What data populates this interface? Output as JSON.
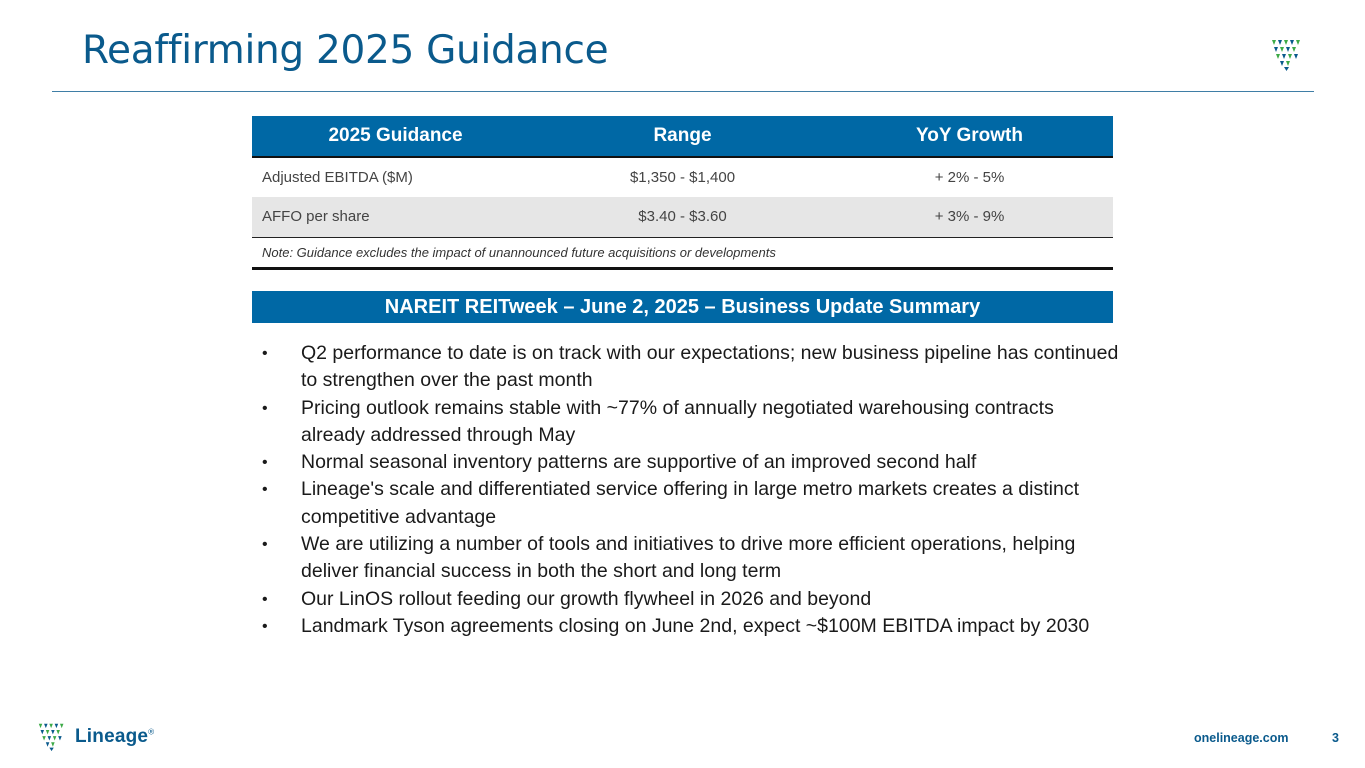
{
  "slide": {
    "title": "Reaffirming 2025 Guidance",
    "page_number": "3",
    "footer_url": "onelineage.com",
    "brand": {
      "name": "Lineage",
      "trademark": "®",
      "primary_color": "#0a5a8c",
      "accent_color": "#0068a5",
      "leaf_color": "#3daa47"
    }
  },
  "guidance_table": {
    "headers": [
      "2025 Guidance",
      "Range",
      "YoY Growth"
    ],
    "rows": [
      {
        "label": "Adjusted EBITDA ($M)",
        "range": "$1,350 - $1,400",
        "growth": "+ 2% - 5%"
      },
      {
        "label": "AFFO per share",
        "range": "$3.40 - $3.60",
        "growth": "+ 3% - 9%"
      }
    ],
    "note": "Note: Guidance excludes the impact of unannounced future acquisitions or developments"
  },
  "summary": {
    "banner": "NAREIT REITweek – June 2, 2025 – Business Update Summary",
    "bullets": [
      "Q2 performance to date is on track with our expectations; new business pipeline has continued to strengthen over the past month",
      "Pricing outlook remains stable with ~77% of annually negotiated warehousing contracts already addressed through May",
      "Normal seasonal inventory patterns are supportive of an improved second half",
      "Lineage's scale and differentiated service offering in large metro markets creates a distinct competitive advantage",
      "We are utilizing a number of tools and initiatives to drive more efficient operations, helping deliver financial success in both the short and long term",
      "Our LinOS rollout feeding our growth flywheel in 2026 and beyond",
      "Landmark Tyson agreements closing on June 2nd, expect ~$100M EBITDA impact by 2030"
    ],
    "bullet_glyph": "•"
  }
}
